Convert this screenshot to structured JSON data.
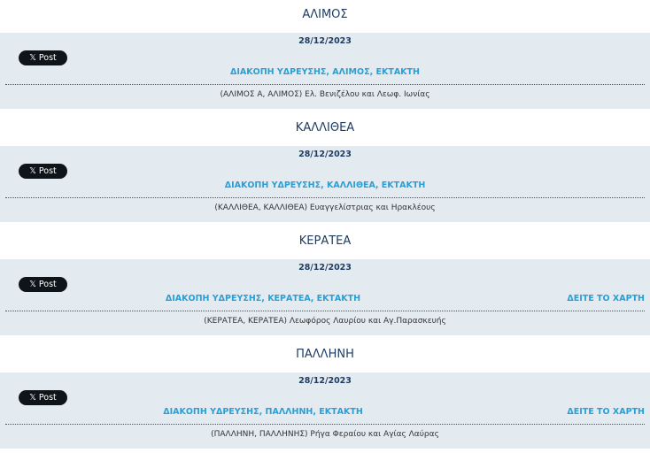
{
  "post_label": "Post",
  "map_label": "ΔΕΙΤΕ ΤΟ ΧΑΡΤΗ",
  "colors": {
    "title": "#1d3b5e",
    "link": "#2a9fd6",
    "panel": "#e3eaf0"
  },
  "sections": [
    {
      "town": "ΑΛΙΜΟΣ",
      "date": "28/12/2023",
      "title": "ΔΙΑΚΟΠΗ ΥΔΡΕΥΣΗΣ, ΑΛΙΜΟΣ, ΕΚΤΑΚΤΗ",
      "address": "(ΑΛΙΜΟΣ Α, ΑΛΙΜΟΣ) Ελ. Βενιζέλου και Λεωφ. Ιωνίας",
      "has_map": false
    },
    {
      "town": "ΚΑΛΛΙΘΕΑ",
      "date": "28/12/2023",
      "title": "ΔΙΑΚΟΠΗ ΥΔΡΕΥΣΗΣ, ΚΑΛΛΙΘΕΑ, ΕΚΤΑΚΤΗ",
      "address": "(ΚΑΛΛΙΘΕΑ, ΚΑΛΛΙΘΕΑ) Ευαγγελίστριας και Ηρακλέους",
      "has_map": false
    },
    {
      "town": "ΚΕΡΑΤΕΑ",
      "date": "28/12/2023",
      "title": "ΔΙΑΚΟΠΗ ΥΔΡΕΥΣΗΣ, ΚΕΡΑΤΕΑ, ΕΚΤΑΚΤΗ",
      "address": "(ΚΕΡΑΤΕΑ, ΚΕΡΑΤΕΑ) Λεωφόρος Λαυρίου και Αγ.Παρασκευής",
      "has_map": true
    },
    {
      "town": "ΠΑΛΛΗΝΗ",
      "date": "28/12/2023",
      "title": "ΔΙΑΚΟΠΗ ΥΔΡΕΥΣΗΣ, ΠΑΛΛΗΝΗ, ΕΚΤΑΚΤΗ",
      "address": "(ΠΑΛΛΗΝΗ, ΠΑΛΛΗΝΗΣ) Ρήγα Φεραίου και Αγίας Λαύρας",
      "has_map": true
    }
  ]
}
